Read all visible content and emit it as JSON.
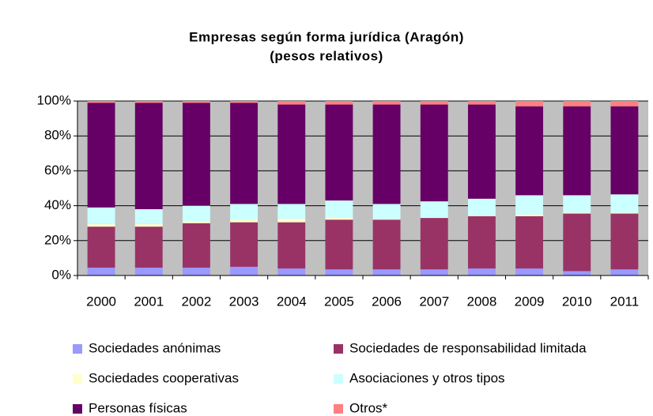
{
  "chart_data": {
    "type": "stacked_bar",
    "title": "Empresas según forma jurídica (Aragón)",
    "subtitle": "(pesos relativos)",
    "categories": [
      "2000",
      "2001",
      "2002",
      "2003",
      "2004",
      "2005",
      "2006",
      "2007",
      "2008",
      "2009",
      "2010",
      "2011"
    ],
    "series": [
      {
        "name": "Sociedades anónimas",
        "color": "#9999ff",
        "values": [
          4.5,
          4.5,
          4.5,
          5,
          4,
          3.5,
          3.5,
          3.5,
          4,
          4,
          2.5,
          3.5
        ]
      },
      {
        "name": "Sociedades de responsabilidad limitada",
        "color": "#993366",
        "values": [
          23.5,
          23.5,
          25.5,
          25.5,
          26.5,
          28.5,
          28.5,
          29.5,
          30,
          30,
          33,
          32
        ]
      },
      {
        "name": "Sociedades cooperativas",
        "color": "#ffffcc",
        "values": [
          1.5,
          1.5,
          1,
          1.5,
          2,
          1,
          0.5,
          0.5,
          0.5,
          1,
          0.5,
          0.5
        ]
      },
      {
        "name": "Asociaciones y otros tipos",
        "color": "#ccffff",
        "values": [
          9.5,
          8.5,
          9,
          9,
          8.5,
          10,
          8.5,
          9,
          9.5,
          11,
          10,
          10.5
        ]
      },
      {
        "name": "Personas físicas",
        "color": "#660066",
        "values": [
          60,
          61,
          59,
          58,
          57,
          55,
          57,
          55.5,
          54,
          51,
          51,
          50.5
        ]
      },
      {
        "name": "Otros*",
        "color": "#ff8080",
        "values": [
          1,
          1,
          1,
          1,
          2,
          2,
          2,
          2,
          2,
          3,
          3,
          3
        ]
      }
    ],
    "ylim": [
      0,
      100
    ],
    "yticks": [
      {
        "value": 0,
        "label": "0%"
      },
      {
        "value": 20,
        "label": "20%"
      },
      {
        "value": 40,
        "label": "40%"
      },
      {
        "value": 60,
        "label": "60%"
      },
      {
        "value": 80,
        "label": "80%"
      },
      {
        "value": 100,
        "label": "100%"
      }
    ],
    "grid": true,
    "plot_background": "#c0c0c0",
    "legend": "bottom"
  }
}
